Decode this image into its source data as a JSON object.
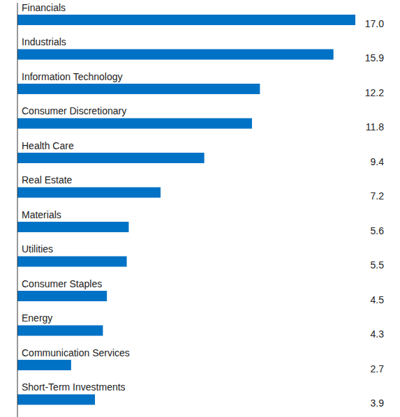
{
  "chart_data": {
    "type": "bar",
    "orientation": "horizontal",
    "categories": [
      "Financials",
      "Industrials",
      "Information Technology",
      "Consumer Discretionary",
      "Health Care",
      "Real Estate",
      "Materials",
      "Utilities",
      "Consumer Staples",
      "Energy",
      "Communication Services",
      "Short-Term Investments"
    ],
    "values": [
      17.0,
      15.9,
      12.2,
      11.8,
      9.4,
      7.2,
      5.6,
      5.5,
      4.5,
      4.3,
      2.7,
      3.9
    ],
    "value_labels": [
      "17.0",
      "15.9",
      "12.2",
      "11.8",
      "9.4",
      "7.2",
      "5.6",
      "5.5",
      "4.5",
      "4.3",
      "2.7",
      "3.9"
    ],
    "color": "#0072c6",
    "xlim": [
      0,
      17
    ],
    "data_labels": true,
    "tick_labels": "y",
    "grid": false
  }
}
